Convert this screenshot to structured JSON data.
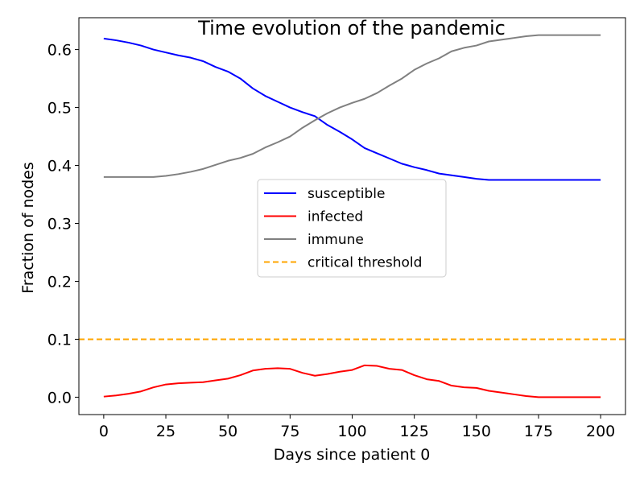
{
  "chart_data": {
    "type": "line",
    "title": "Time evolution of the pandemic",
    "xlabel": "Days since patient 0",
    "ylabel": "Fraction of nodes",
    "xlim": [
      -10,
      210
    ],
    "ylim": [
      -0.03,
      0.655
    ],
    "xticks": [
      0,
      25,
      50,
      75,
      100,
      125,
      150,
      175,
      200
    ],
    "yticks": [
      0.0,
      0.1,
      0.2,
      0.3,
      0.4,
      0.5,
      0.6
    ],
    "xtick_labels": [
      "0",
      "25",
      "50",
      "75",
      "100",
      "125",
      "150",
      "175",
      "200"
    ],
    "ytick_labels": [
      "0.0",
      "0.1",
      "0.2",
      "0.3",
      "0.4",
      "0.5",
      "0.6"
    ],
    "grid": false,
    "legend_position": "center",
    "x": [
      0,
      5,
      10,
      15,
      20,
      25,
      30,
      35,
      40,
      45,
      50,
      55,
      60,
      65,
      70,
      75,
      80,
      85,
      90,
      95,
      100,
      105,
      110,
      115,
      120,
      125,
      130,
      135,
      140,
      145,
      150,
      155,
      160,
      165,
      170,
      175,
      180,
      185,
      190,
      195,
      200
    ],
    "series": [
      {
        "name": "susceptible",
        "color": "#0000ff",
        "style": "solid",
        "values": [
          0.619,
          0.616,
          0.612,
          0.607,
          0.6,
          0.595,
          0.59,
          0.586,
          0.58,
          0.57,
          0.562,
          0.55,
          0.533,
          0.52,
          0.51,
          0.5,
          0.492,
          0.485,
          0.47,
          0.458,
          0.445,
          0.43,
          0.421,
          0.412,
          0.403,
          0.397,
          0.392,
          0.386,
          0.383,
          0.38,
          0.377,
          0.375,
          0.375,
          0.375,
          0.375,
          0.375,
          0.375,
          0.375,
          0.375,
          0.375,
          0.375
        ]
      },
      {
        "name": "infected",
        "color": "#ff0000",
        "style": "solid",
        "values": [
          0.001,
          0.003,
          0.006,
          0.01,
          0.017,
          0.022,
          0.024,
          0.025,
          0.026,
          0.029,
          0.032,
          0.038,
          0.046,
          0.049,
          0.05,
          0.049,
          0.042,
          0.037,
          0.04,
          0.044,
          0.047,
          0.055,
          0.054,
          0.049,
          0.047,
          0.038,
          0.031,
          0.028,
          0.02,
          0.017,
          0.016,
          0.011,
          0.008,
          0.005,
          0.002,
          0.0,
          0.0,
          0.0,
          0.0,
          0.0,
          0.0
        ]
      },
      {
        "name": "immune",
        "color": "#808080",
        "style": "solid",
        "values": [
          0.38,
          0.38,
          0.38,
          0.38,
          0.38,
          0.382,
          0.385,
          0.389,
          0.394,
          0.401,
          0.408,
          0.413,
          0.42,
          0.431,
          0.44,
          0.45,
          0.465,
          0.478,
          0.49,
          0.5,
          0.508,
          0.515,
          0.525,
          0.538,
          0.55,
          0.565,
          0.576,
          0.585,
          0.597,
          0.603,
          0.607,
          0.614,
          0.617,
          0.62,
          0.623,
          0.625,
          0.625,
          0.625,
          0.625,
          0.625,
          0.625
        ]
      },
      {
        "name": "critical threshold",
        "color": "#ffa500",
        "style": "dashed",
        "values": [
          0.1,
          0.1,
          0.1,
          0.1,
          0.1,
          0.1,
          0.1,
          0.1,
          0.1,
          0.1,
          0.1,
          0.1,
          0.1,
          0.1,
          0.1,
          0.1,
          0.1,
          0.1,
          0.1,
          0.1,
          0.1,
          0.1,
          0.1,
          0.1,
          0.1,
          0.1,
          0.1,
          0.1,
          0.1,
          0.1,
          0.1,
          0.1,
          0.1,
          0.1,
          0.1,
          0.1,
          0.1,
          0.1,
          0.1,
          0.1,
          0.1
        ]
      }
    ]
  }
}
